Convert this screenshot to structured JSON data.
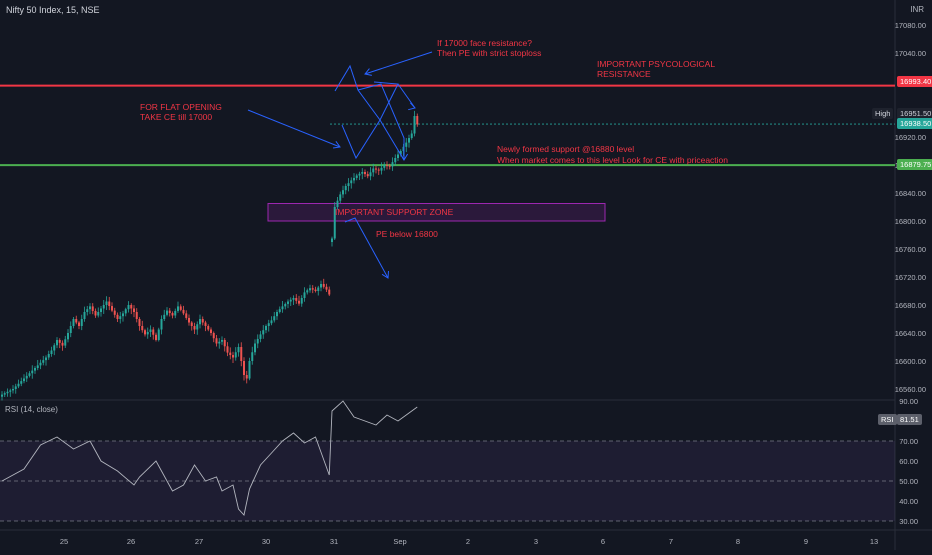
{
  "header": {
    "symbol": "Nifty 50 Index, 15, NSE",
    "currency": "INR"
  },
  "price_axis": {
    "ticks": [
      "17080.00",
      "17040.00",
      "16920.00",
      "16880.00",
      "16840.00",
      "16800.00",
      "16760.00",
      "16720.00",
      "16680.00",
      "16640.00",
      "16600.00",
      "16560.00"
    ]
  },
  "rsi_axis": {
    "ticks": [
      "90.00",
      "70.00",
      "60.00",
      "50.00",
      "40.00",
      "30.00"
    ]
  },
  "time_axis": {
    "ticks": [
      "25",
      "26",
      "27",
      "30",
      "31",
      "Sep",
      "2",
      "3",
      "6",
      "7",
      "8",
      "9",
      "13"
    ]
  },
  "price_tags": {
    "resistance": "16993.40",
    "high_label": "High",
    "high": "16951.50",
    "last": "16938.50",
    "support": "16879.75"
  },
  "rsi": {
    "title": "RSI (14, close)",
    "tag_label": "RSI",
    "tag_value": "81.51"
  },
  "annotations": {
    "resistance_question": "If 17000 face resistance?",
    "resistance_action": "Then PE with strict stoploss",
    "psych_line1": "IMPORTANT PSYCOLOGICAL",
    "psych_line2": "RESISTANCE",
    "flat_line1": "FOR FLAT OPENING",
    "flat_line2": "TAKE CE till 17000",
    "support_line1": "Newly formed support @16880 level",
    "support_line2": "When market comes to this level Look for CE with priceaction",
    "zone": "IMPORTANT SUPPORT ZONE",
    "pe_below": "PE below 16800"
  },
  "colors": {
    "background": "#131722",
    "up": "#26a69a",
    "down": "#ef5350",
    "resistance_line": "#f23645",
    "support_line": "#4caf50",
    "annotation_text": "#f23645",
    "arrow": "#2962ff",
    "zone_border": "#9c27b0",
    "rsi_line": "#b2b5be"
  },
  "chart_data": {
    "type": "candlestick",
    "interval": "15",
    "y_range": [
      16540,
      17100
    ],
    "levels": {
      "resistance": 16993.4,
      "support": 16879.75
    },
    "last_price": 16938.5,
    "high": 16951.5,
    "support_zone": [
      16800,
      16825
    ],
    "rsi_value": 81.51,
    "rsi_levels": [
      70,
      50,
      30
    ],
    "close_path": [
      [
        0,
        16552
      ],
      [
        4,
        16560
      ],
      [
        8,
        16575
      ],
      [
        12,
        16590
      ],
      [
        16,
        16605
      ],
      [
        18,
        16615
      ],
      [
        20,
        16630
      ],
      [
        22,
        16622
      ],
      [
        24,
        16640
      ],
      [
        26,
        16660
      ],
      [
        28,
        16650
      ],
      [
        30,
        16670
      ],
      [
        32,
        16678
      ],
      [
        34,
        16665
      ],
      [
        36,
        16675
      ],
      [
        38,
        16685
      ],
      [
        40,
        16672
      ],
      [
        42,
        16660
      ],
      [
        44,
        16668
      ],
      [
        46,
        16680
      ],
      [
        48,
        16670
      ],
      [
        50,
        16650
      ],
      [
        52,
        16638
      ],
      [
        54,
        16645
      ],
      [
        56,
        16630
      ],
      [
        58,
        16660
      ],
      [
        60,
        16672
      ],
      [
        62,
        16665
      ],
      [
        64,
        16678
      ],
      [
        66,
        16668
      ],
      [
        68,
        16655
      ],
      [
        70,
        16645
      ],
      [
        72,
        16660
      ],
      [
        74,
        16650
      ],
      [
        76,
        16640
      ],
      [
        78,
        16625
      ],
      [
        80,
        16630
      ],
      [
        82,
        16612
      ],
      [
        84,
        16605
      ],
      [
        86,
        16620
      ],
      [
        88,
        16580
      ],
      [
        89,
        16575
      ],
      [
        90,
        16600
      ],
      [
        92,
        16625
      ],
      [
        94,
        16638
      ],
      [
        96,
        16650
      ],
      [
        98,
        16658
      ],
      [
        100,
        16670
      ],
      [
        102,
        16678
      ],
      [
        104,
        16685
      ],
      [
        106,
        16690
      ],
      [
        108,
        16682
      ],
      [
        110,
        16698
      ],
      [
        112,
        16704
      ],
      [
        114,
        16700
      ],
      [
        116,
        16710
      ],
      [
        118,
        16702
      ],
      [
        119,
        16695
      ],
      [
        120,
        16775
      ],
      [
        121,
        16820
      ],
      [
        123,
        16838
      ],
      [
        125,
        16850
      ],
      [
        127,
        16858
      ],
      [
        129,
        16865
      ],
      [
        131,
        16870
      ],
      [
        133,
        16864
      ],
      [
        135,
        16875
      ],
      [
        137,
        16872
      ],
      [
        139,
        16880
      ],
      [
        141,
        16878
      ],
      [
        143,
        16890
      ],
      [
        145,
        16900
      ],
      [
        147,
        16912
      ],
      [
        149,
        16925
      ],
      [
        150,
        16950
      ],
      [
        151,
        16938
      ]
    ]
  }
}
